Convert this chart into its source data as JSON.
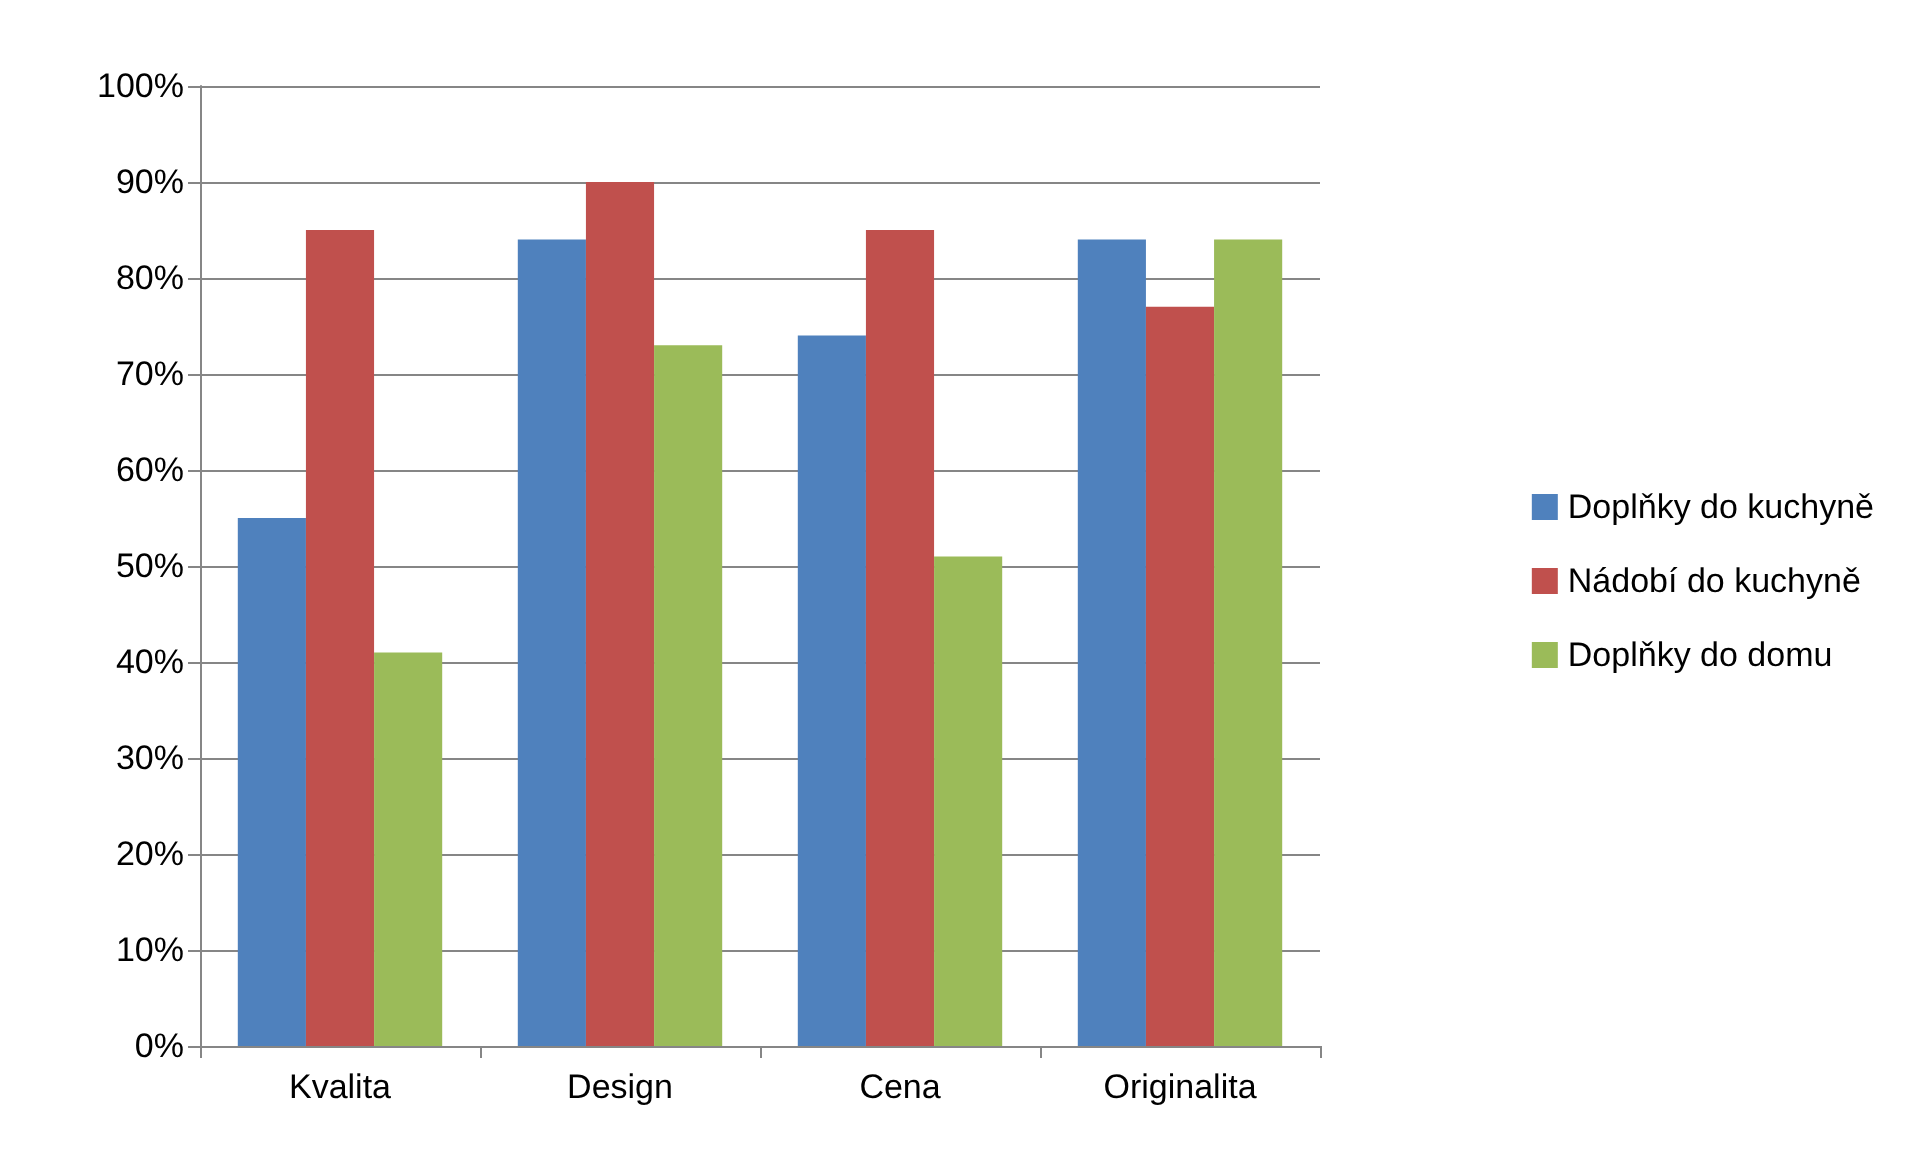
{
  "chart_data": {
    "type": "bar",
    "categories": [
      "Kvalita",
      "Design",
      "Cena",
      "Originalita"
    ],
    "series": [
      {
        "name": "Doplňky do kuchyně",
        "color": "#4f81bd",
        "values": [
          55,
          84,
          74,
          84
        ]
      },
      {
        "name": "Nádobí do kuchyně",
        "color": "#c0504d",
        "values": [
          85,
          90,
          85,
          77
        ]
      },
      {
        "name": "Doplňky do domu",
        "color": "#9bbb59",
        "values": [
          41,
          73,
          51,
          84
        ]
      }
    ],
    "ylim": [
      0,
      100
    ],
    "yticks": [
      {
        "value": 0,
        "label": "0%"
      },
      {
        "value": 10,
        "label": "10%"
      },
      {
        "value": 20,
        "label": "20%"
      },
      {
        "value": 30,
        "label": "30%"
      },
      {
        "value": 40,
        "label": "40%"
      },
      {
        "value": 50,
        "label": "50%"
      },
      {
        "value": 60,
        "label": "60%"
      },
      {
        "value": 70,
        "label": "70%"
      },
      {
        "value": 80,
        "label": "80%"
      },
      {
        "value": 90,
        "label": "90%"
      },
      {
        "value": 100,
        "label": "100%"
      }
    ],
    "grid": "y",
    "legend": "right"
  }
}
